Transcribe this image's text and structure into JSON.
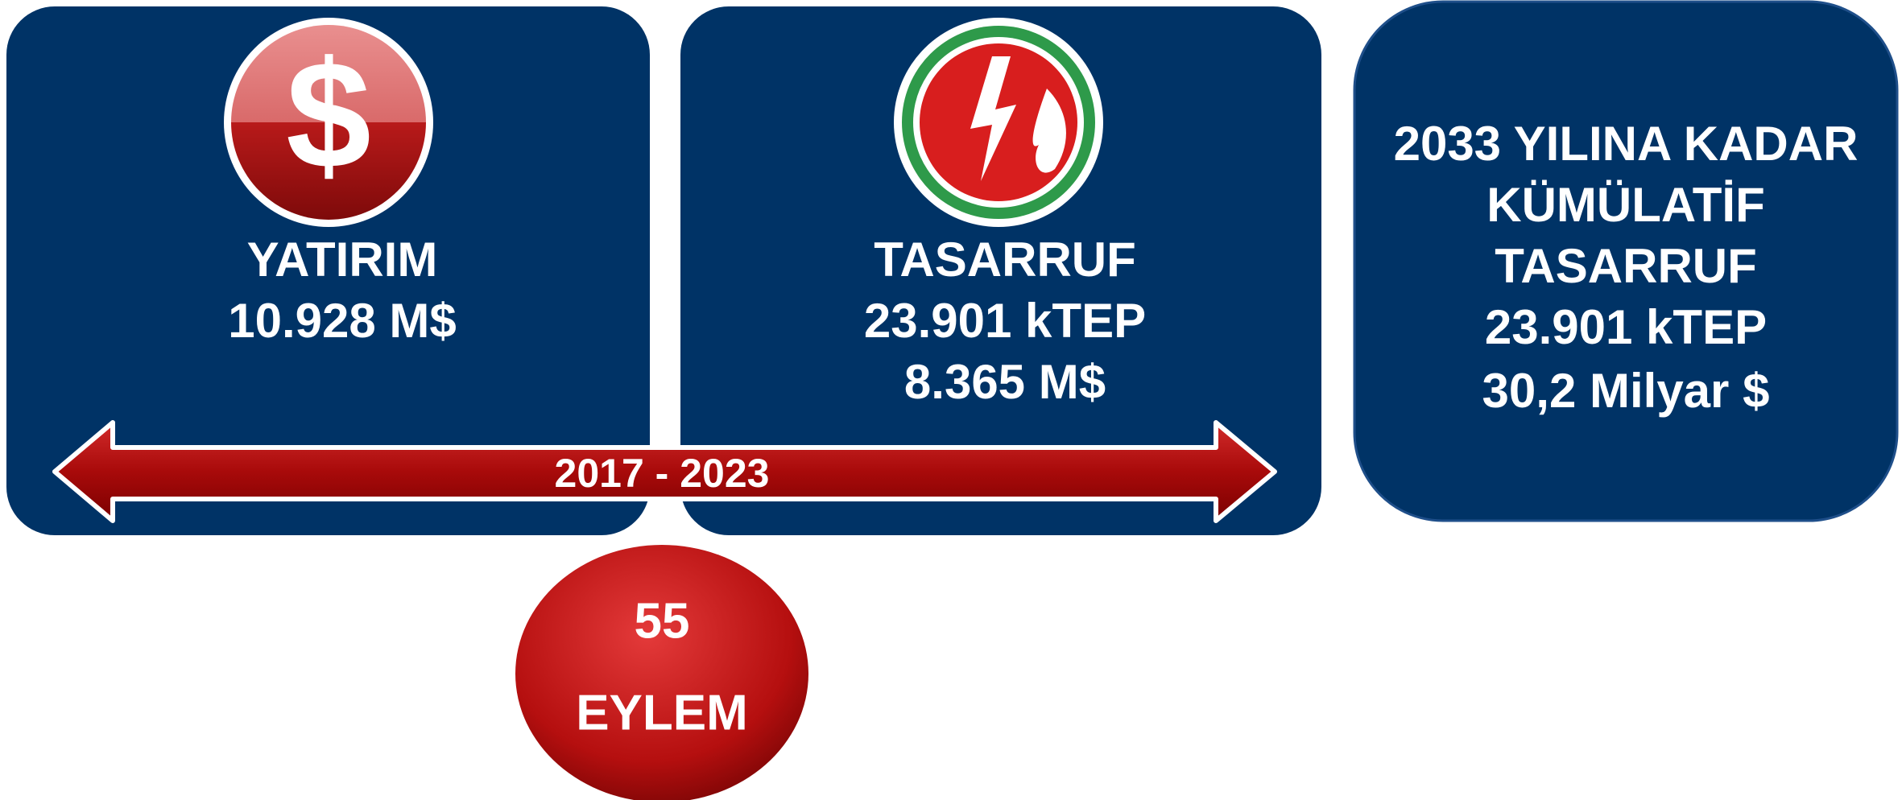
{
  "panels": [
    {
      "icon": "$",
      "title": "YATIRIM",
      "lines": [
        "10.928 M$"
      ]
    },
    {
      "title": "TASARRUF",
      "lines": [
        "23.901 kTEP",
        "8.365 M$"
      ]
    }
  ],
  "timeline": {
    "label": "2017 - 2023"
  },
  "summary": {
    "lines": [
      "2033 YILINA KADAR",
      "KÜMÜLATİF",
      "TASARRUF",
      "23.901 kTEP",
      "30,2 Milyar $"
    ]
  },
  "badge": {
    "count": 55,
    "label": "EYLEM"
  }
}
